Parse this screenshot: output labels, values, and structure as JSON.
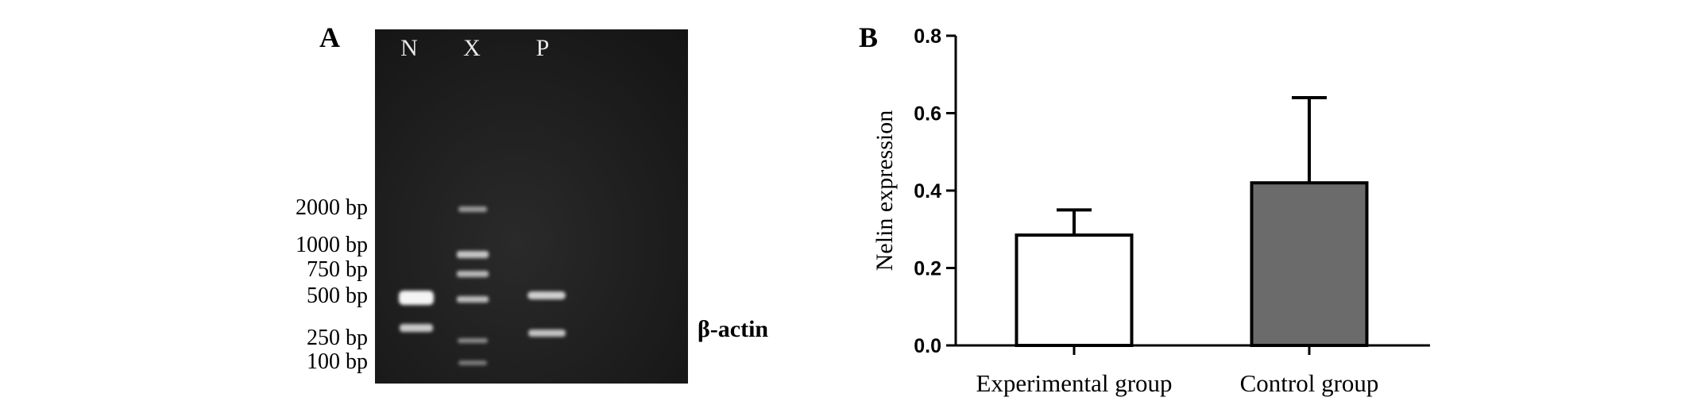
{
  "panel_a": {
    "label": "A",
    "lanes": [
      "N",
      "X",
      "P"
    ],
    "ladder": [
      "2000 bp",
      "1000 bp",
      "750 bp",
      "500 bp",
      "250 bp",
      "100 bp"
    ],
    "band_annotation": "β-actin"
  },
  "panel_b": {
    "label": "B"
  },
  "chart_data": {
    "type": "bar",
    "categories": [
      "Experimental group",
      "Control group"
    ],
    "values": [
      0.285,
      0.42
    ],
    "errors": [
      0.065,
      0.22
    ],
    "bar_colors": [
      "#ffffff",
      "#6b6b6b"
    ],
    "xlabel": "",
    "ylabel": "Nelin expression",
    "ylim": [
      0,
      0.8
    ],
    "yticks": [
      "0.0",
      "0.2",
      "0.4",
      "0.6",
      "0.8"
    ],
    "grid": false
  }
}
